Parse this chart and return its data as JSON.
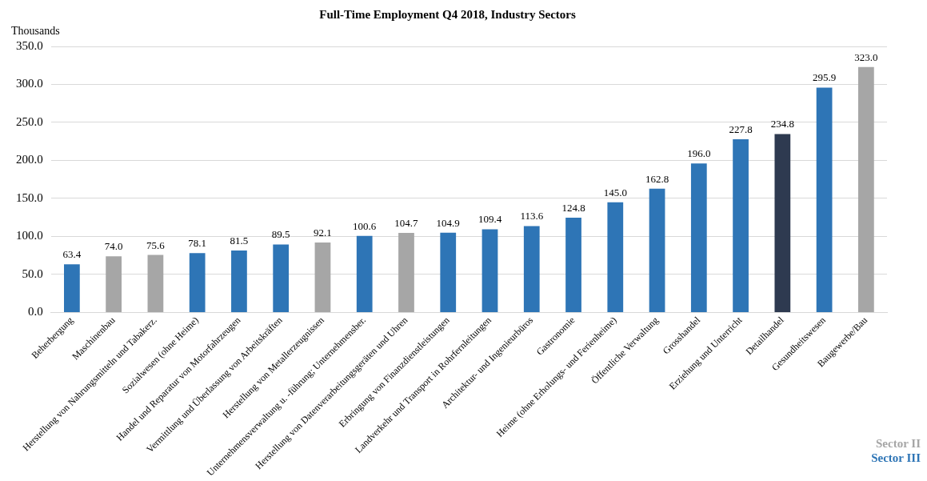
{
  "chart_data": {
    "type": "bar",
    "title": "Full-Time Employment Q4 2018, Industry Sectors",
    "ylabel": "Thousands",
    "categories": [
      "Beherbergung",
      "Maschinenbau",
      "Herstellung von Nahrungsmitteln und Tabakerz.",
      "Sozialwesen (ohne Heime)",
      "Handel und Reparatur von Motorfahrzeugen",
      "Vermittlung und Überlassung von Arbeitskräften",
      "Herstellung von Metallerzeugnissen",
      "Unternehmensverwaltung u. -führung; Unternehmensber.",
      "Herstellung von Datenverarbeitungsgeräten und Uhren",
      "Erbringung von Finanzdienstleistungen",
      "Landverkehr und Transport in Rohrfernleitungen",
      "Architektur- und Ingenieurbüros",
      "Gastronomie",
      "Heime (ohne Erholungs- und Ferienheime)",
      "Öffentliche Verwaltung",
      "Grosshandel",
      "Erziehung und Unterricht",
      "Detailhandel",
      "Gesundheitswesen",
      "Baugewerbe/Bau"
    ],
    "series": [
      {
        "name": "Sector II",
        "color": "#a6a6a6",
        "values": [
          null,
          74.0,
          75.6,
          null,
          null,
          null,
          92.1,
          null,
          104.7,
          null,
          null,
          null,
          null,
          null,
          null,
          null,
          null,
          null,
          null,
          323.0
        ],
        "value_labels": [
          null,
          "74.0",
          "75.6",
          null,
          null,
          null,
          "92.1",
          null,
          "104.7",
          null,
          null,
          null,
          null,
          null,
          null,
          null,
          null,
          null,
          null,
          "323.0"
        ]
      },
      {
        "name": "Sector III",
        "color": "#2e75b6",
        "colors": [
          "#2e75b6",
          null,
          null,
          "#2e75b6",
          "#2e75b6",
          "#2e75b6",
          null,
          "#2e75b6",
          null,
          "#2e75b6",
          "#2e75b6",
          "#2e75b6",
          "#2e75b6",
          "#2e75b6",
          "#2e75b6",
          "#2e75b6",
          "#2e75b6",
          "#2e3a50",
          "#2e75b6",
          null
        ],
        "values": [
          63.4,
          null,
          null,
          78.1,
          81.5,
          89.5,
          null,
          100.6,
          null,
          104.9,
          109.4,
          113.6,
          124.8,
          145.0,
          162.8,
          196.0,
          227.8,
          234.8,
          295.9,
          null
        ],
        "value_labels": [
          "63.4",
          null,
          null,
          "78.1",
          "81.5",
          "89.5",
          null,
          "100.6",
          null,
          "104.9",
          "109.4",
          "113.6",
          "124.8",
          "145.0",
          "162.8",
          "196.0",
          "227.8",
          "234.8",
          "295.9",
          null
        ]
      }
    ],
    "ylim": [
      0,
      350
    ],
    "yticks": [
      {
        "value": 0,
        "label": "0.0"
      },
      {
        "value": 50,
        "label": "50.0"
      },
      {
        "value": 100,
        "label": "100.0"
      },
      {
        "value": 150,
        "label": "150.0"
      },
      {
        "value": 200,
        "label": "200.0"
      },
      {
        "value": 250,
        "label": "250.0"
      },
      {
        "value": 300,
        "label": "300.0"
      },
      {
        "value": 350,
        "label": "350.0"
      }
    ],
    "grid": "y",
    "legend": "bottom right"
  }
}
